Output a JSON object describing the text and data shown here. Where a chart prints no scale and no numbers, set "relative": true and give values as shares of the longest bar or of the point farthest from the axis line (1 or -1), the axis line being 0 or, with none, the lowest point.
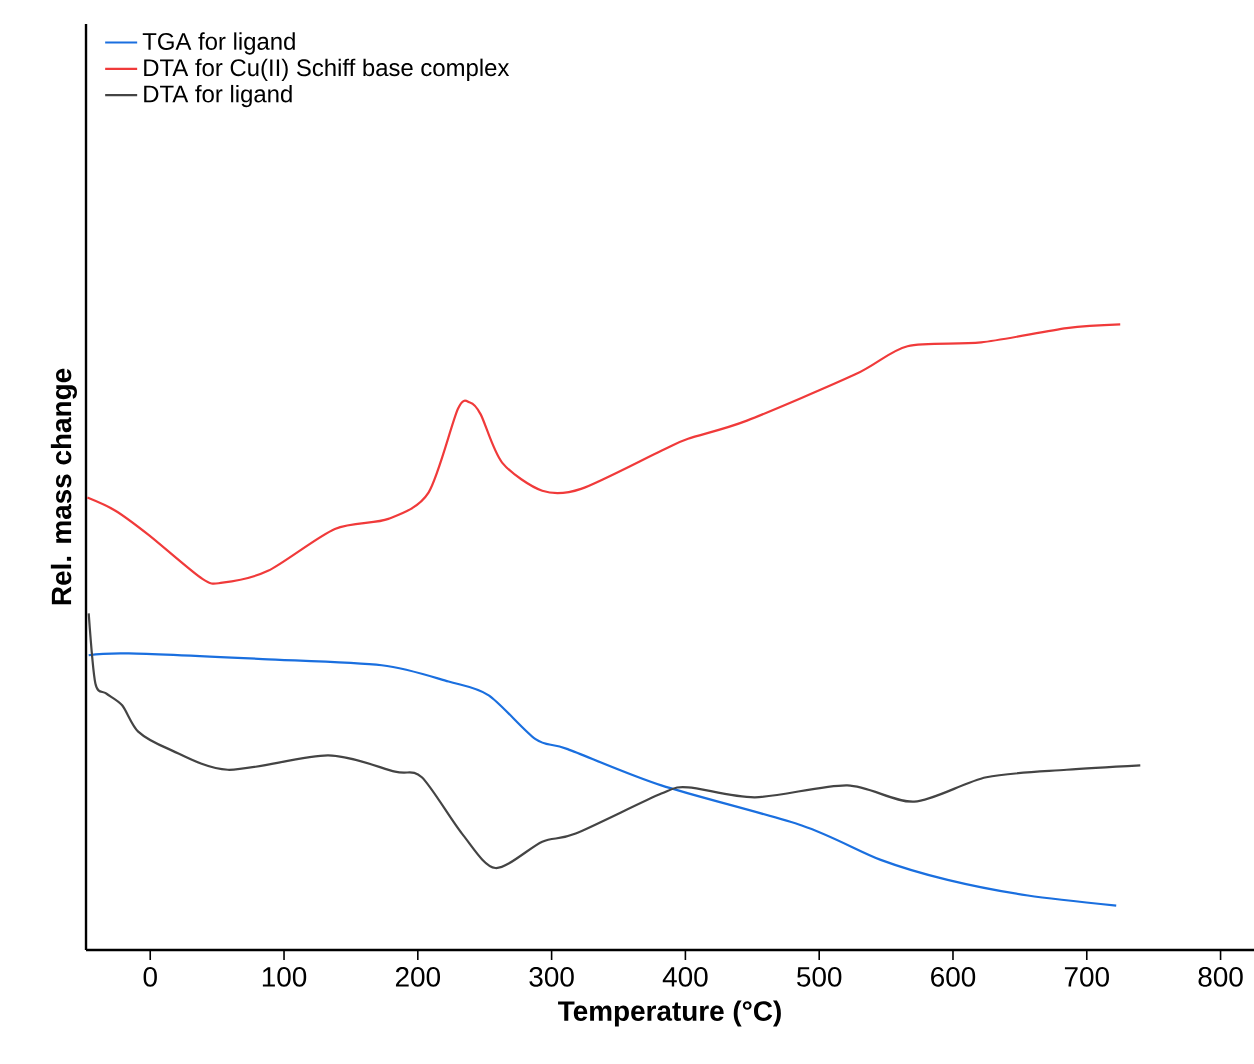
{
  "chart_data": {
    "type": "line",
    "relative": true,
    "xlabel": "Temperature (°C)",
    "ylabel": "Rel. mass change",
    "xlim": [
      -48,
      825
    ],
    "xticks": [
      0,
      100,
      200,
      300,
      400,
      500,
      600,
      700,
      800
    ],
    "grid": false,
    "legend": "top left",
    "marker": "none",
    "line_style": "solid",
    "series": [
      {
        "name": "TGA  for ligand",
        "color": "#1a6fdf",
        "x": [
          -46,
          -16,
          84,
          173,
          223,
          253,
          288,
          312,
          382,
          487,
          546,
          596,
          656,
          722
        ],
        "values": [
          0.471,
          0.474,
          0.465,
          0.455,
          0.429,
          0.407,
          0.337,
          0.321,
          0.263,
          0.199,
          0.144,
          0.112,
          0.087,
          0.071
        ]
      },
      {
        "name": "DTA for Cu(II) Schiff base complex",
        "color": "#f03a3a",
        "x": [
          -47,
          -26,
          -1,
          39,
          54,
          88,
          138,
          178,
          208,
          230,
          239,
          247,
          263,
          293,
          322,
          382,
          402,
          446,
          527,
          566,
          621,
          685,
          725
        ],
        "values": [
          0.723,
          0.702,
          0.663,
          0.593,
          0.587,
          0.606,
          0.673,
          0.689,
          0.731,
          0.865,
          0.875,
          0.856,
          0.779,
          0.734,
          0.737,
          0.798,
          0.817,
          0.846,
          0.92,
          0.965,
          0.971,
          0.994,
          1
        ]
      },
      {
        "name": "DTA for ligand",
        "color": "#444444",
        "x": [
          -46,
          -41,
          -33,
          -21,
          -9,
          14,
          58,
          133,
          183,
          203,
          233,
          258,
          293,
          318,
          382,
          402,
          452,
          521,
          571,
          625,
          685,
          740
        ],
        "values": [
          0.538,
          0.426,
          0.41,
          0.391,
          0.349,
          0.321,
          0.288,
          0.311,
          0.285,
          0.276,
          0.186,
          0.131,
          0.173,
          0.186,
          0.25,
          0.26,
          0.244,
          0.263,
          0.237,
          0.276,
          0.288,
          0.295
        ]
      }
    ]
  }
}
